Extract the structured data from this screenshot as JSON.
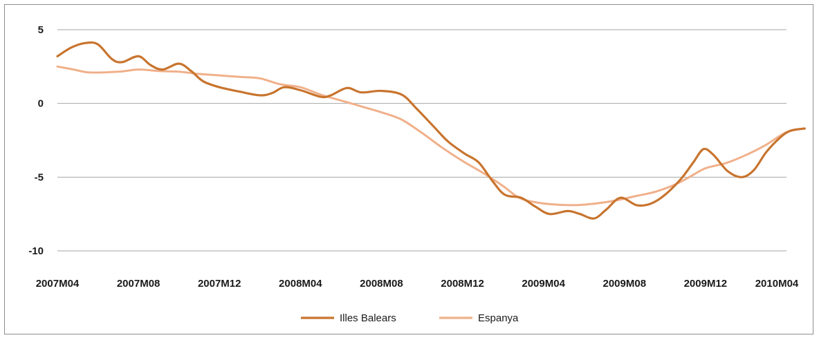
{
  "chart_data": {
    "type": "line",
    "title": "",
    "xlabel": "",
    "ylabel": "",
    "x_ticks": [
      "2007M04",
      "2007M08",
      "2007M12",
      "2008M04",
      "2008M08",
      "2008M12",
      "2009M04",
      "2009M08",
      "2009M12",
      "2010M04"
    ],
    "x_range": [
      0,
      36
    ],
    "y_ticks": [
      5,
      0,
      -5,
      -10
    ],
    "ylim": [
      -10,
      5
    ],
    "grid": "horizontal",
    "legend_position": "bottom",
    "series": [
      {
        "name": "Illes Balears",
        "color": "#c8742e",
        "points": [
          [
            0,
            3.2
          ],
          [
            0.7,
            3.8
          ],
          [
            1.4,
            4.1
          ],
          [
            2.0,
            4.0
          ],
          [
            2.7,
            3.0
          ],
          [
            3.2,
            2.8
          ],
          [
            4.0,
            3.2
          ],
          [
            4.6,
            2.6
          ],
          [
            5.2,
            2.3
          ],
          [
            6.0,
            2.7
          ],
          [
            6.6,
            2.2
          ],
          [
            7.2,
            1.5
          ],
          [
            8.0,
            1.1
          ],
          [
            9.0,
            0.8
          ],
          [
            10.0,
            0.55
          ],
          [
            10.6,
            0.7
          ],
          [
            11.2,
            1.1
          ],
          [
            12.0,
            0.9
          ],
          [
            13.0,
            0.45
          ],
          [
            13.5,
            0.55
          ],
          [
            14.3,
            1.05
          ],
          [
            15.0,
            0.75
          ],
          [
            16.0,
            0.85
          ],
          [
            17.0,
            0.6
          ],
          [
            17.7,
            -0.3
          ],
          [
            18.6,
            -1.6
          ],
          [
            19.3,
            -2.6
          ],
          [
            20.1,
            -3.4
          ],
          [
            20.8,
            -4.0
          ],
          [
            21.5,
            -5.3
          ],
          [
            22.1,
            -6.2
          ],
          [
            22.9,
            -6.4
          ],
          [
            23.6,
            -7.0
          ],
          [
            24.3,
            -7.5
          ],
          [
            25.2,
            -7.3
          ],
          [
            25.8,
            -7.5
          ],
          [
            26.5,
            -7.8
          ],
          [
            27.1,
            -7.2
          ],
          [
            27.8,
            -6.4
          ],
          [
            28.6,
            -6.9
          ],
          [
            29.3,
            -6.8
          ],
          [
            30.0,
            -6.2
          ],
          [
            30.8,
            -5.1
          ],
          [
            31.4,
            -4.0
          ],
          [
            31.9,
            -3.1
          ],
          [
            32.4,
            -3.5
          ],
          [
            33.1,
            -4.6
          ],
          [
            33.8,
            -5.0
          ],
          [
            34.4,
            -4.5
          ],
          [
            35.0,
            -3.3
          ],
          [
            35.7,
            -2.3
          ],
          [
            36.2,
            -1.85
          ],
          [
            36.9,
            -1.7
          ]
        ]
      },
      {
        "name": "Espanya",
        "color": "#f0b08a",
        "points": [
          [
            0,
            2.5
          ],
          [
            0.8,
            2.3
          ],
          [
            1.6,
            2.1
          ],
          [
            3.0,
            2.15
          ],
          [
            4.0,
            2.3
          ],
          [
            5.0,
            2.2
          ],
          [
            6.0,
            2.15
          ],
          [
            7.0,
            2.0
          ],
          [
            8.0,
            1.9
          ],
          [
            9.0,
            1.8
          ],
          [
            10.0,
            1.7
          ],
          [
            11.0,
            1.3
          ],
          [
            12.0,
            1.1
          ],
          [
            13.0,
            0.6
          ],
          [
            14.0,
            0.2
          ],
          [
            15.0,
            -0.2
          ],
          [
            16.0,
            -0.6
          ],
          [
            17.0,
            -1.1
          ],
          [
            18.0,
            -2.0
          ],
          [
            19.0,
            -3.0
          ],
          [
            20.0,
            -3.9
          ],
          [
            21.0,
            -4.7
          ],
          [
            22.0,
            -5.6
          ],
          [
            22.8,
            -6.4
          ],
          [
            23.6,
            -6.7
          ],
          [
            24.5,
            -6.85
          ],
          [
            25.5,
            -6.9
          ],
          [
            26.5,
            -6.8
          ],
          [
            27.5,
            -6.6
          ],
          [
            28.5,
            -6.3
          ],
          [
            29.5,
            -6.0
          ],
          [
            30.5,
            -5.5
          ],
          [
            31.2,
            -5.0
          ],
          [
            32.0,
            -4.4
          ],
          [
            33.0,
            -4.05
          ],
          [
            34.0,
            -3.5
          ],
          [
            35.0,
            -2.8
          ],
          [
            36.0,
            -1.95
          ],
          [
            36.9,
            -1.7
          ]
        ]
      }
    ]
  }
}
